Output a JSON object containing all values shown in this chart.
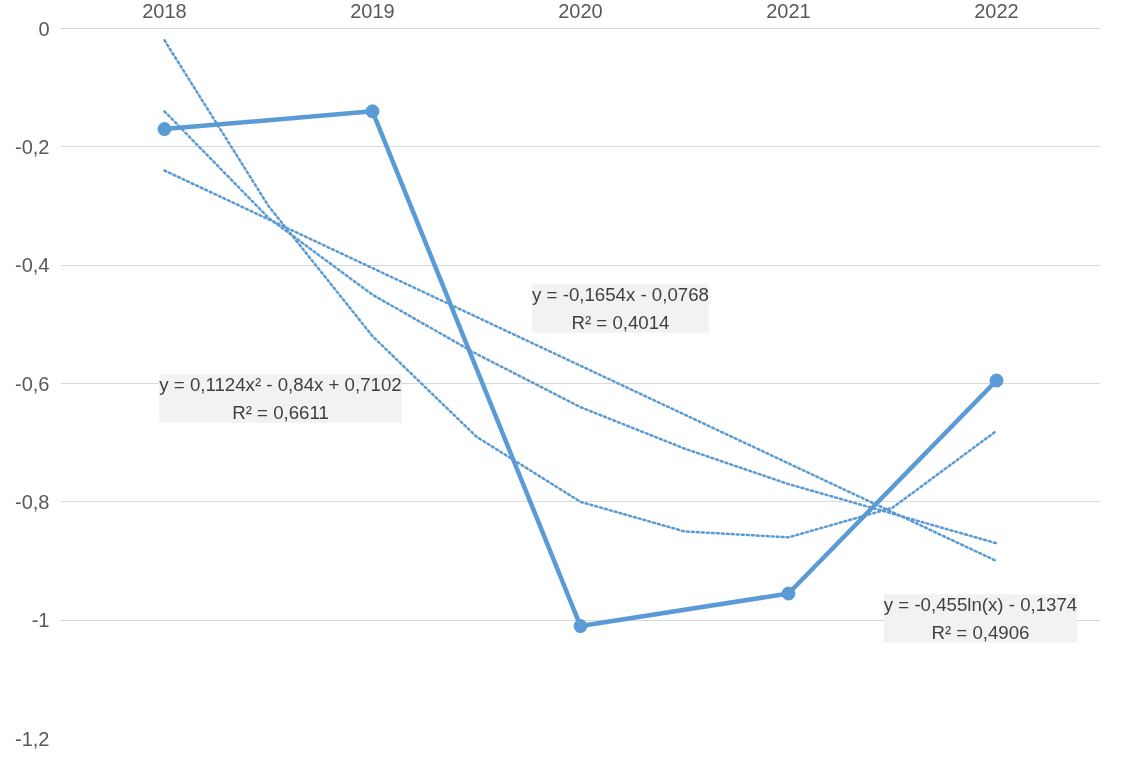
{
  "chart_data": {
    "type": "line",
    "x": [
      2018,
      2019,
      2020,
      2021,
      2022
    ],
    "xlim": [
      2017.5,
      2022.5
    ],
    "xticks": [
      2018,
      2019,
      2020,
      2021,
      2022
    ],
    "ylim": [
      -1.2,
      0
    ],
    "yticks": [
      {
        "value": 0,
        "label": "0"
      },
      {
        "value": -0.2,
        "label": "-0,2"
      },
      {
        "value": -0.4,
        "label": "-0,4"
      },
      {
        "value": -0.6,
        "label": "-0,6"
      },
      {
        "value": -0.8,
        "label": "-0,8"
      },
      {
        "value": -1,
        "label": "-1"
      },
      {
        "value": -1.2,
        "label": "-1,2"
      }
    ],
    "grid": "y",
    "series": [
      {
        "color": "#5b9bd5",
        "values": [
          -0.17,
          -0.14,
          -1.01,
          -0.955,
          -0.595
        ],
        "marker": "circle",
        "line_style": "solid"
      },
      {
        "type": "line",
        "color": "#5b9bd5",
        "x": [
          2018,
          2022
        ],
        "values": [
          -0.24,
          -0.9
        ],
        "marker": "none",
        "line_style": "dotted"
      },
      {
        "type": "line",
        "color": "#5b9bd5",
        "x": [
          2018,
          2018.5,
          2019,
          2019.5,
          2020,
          2020.5,
          2021,
          2021.5,
          2022
        ],
        "values": [
          -0.02,
          -0.3,
          -0.52,
          -0.69,
          -0.8,
          -0.85,
          -0.86,
          -0.81,
          -0.68
        ],
        "marker": "none",
        "line_style": "dotted"
      },
      {
        "type": "line",
        "color": "#5b9bd5",
        "x": [
          2018,
          2018.5,
          2019,
          2019.5,
          2020,
          2020.5,
          2021,
          2021.5,
          2022
        ],
        "values": [
          -0.14,
          -0.32,
          -0.45,
          -0.55,
          -0.64,
          -0.71,
          -0.77,
          -0.82,
          -0.87
        ],
        "marker": "none",
        "line_style": "dotted"
      }
    ],
    "annotations": [
      "y = -0,1654x - 0,0768\nR² = 0,4014",
      "y = 0,1124x² - 0,84x + 0,7102\nR² = 0,6611",
      "y = -0,455ln(x) - 0,1374\nR² = 0,4906"
    ]
  }
}
